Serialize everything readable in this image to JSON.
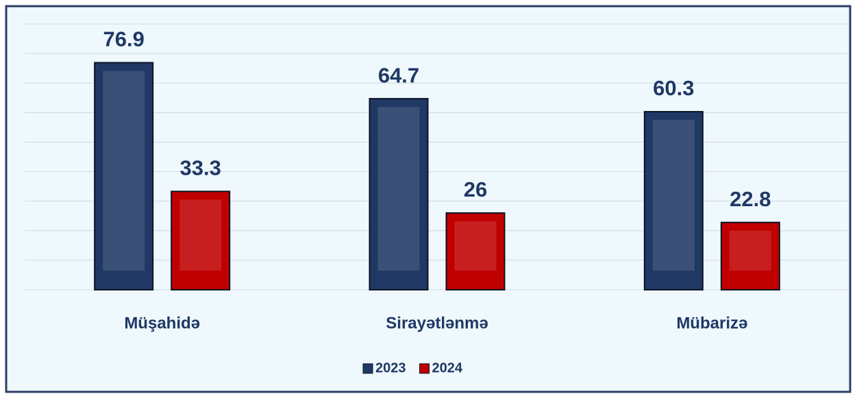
{
  "chart_data": {
    "type": "bar",
    "categories": [
      "Müşahidə",
      "Sirayətlənmə",
      "Mübarizə"
    ],
    "series": [
      {
        "name": "2023",
        "color": "#1f3864",
        "values": [
          76.9,
          64.7,
          60.3
        ]
      },
      {
        "name": "2024",
        "color": "#c00000",
        "values": [
          33.3,
          26,
          22.8
        ]
      }
    ],
    "ylim": [
      0,
      90
    ],
    "yticks": [
      0,
      10,
      20,
      30,
      40,
      50,
      60,
      70,
      80,
      90
    ],
    "grid": true,
    "legend": "bottom"
  }
}
